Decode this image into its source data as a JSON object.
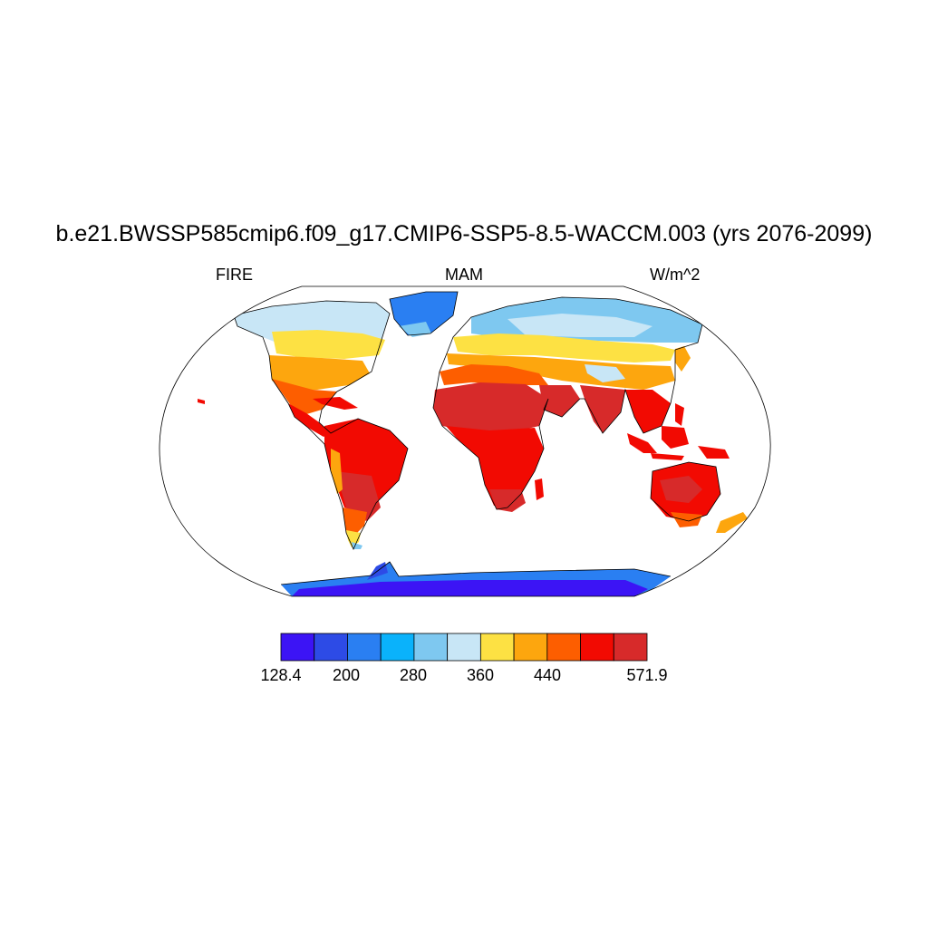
{
  "title": "b.e21.BWSSP585cmip6.f09_g17.CMIP6-SSP5-8.5-WACCM.003 (yrs 2076-2099)",
  "subtitle": {
    "left": "FIRE",
    "center": "MAM",
    "right": "W/m^2"
  },
  "colorbar": {
    "colors": [
      "#3c14f5",
      "#2d4be6",
      "#2a7ff2",
      "#0ab2fb",
      "#7ec8f0",
      "#c8e6f6",
      "#fde143",
      "#fda60e",
      "#fd5e00",
      "#f20a02",
      "#d72a2a"
    ],
    "labels": [
      "128.4",
      "200",
      "280",
      "360",
      "440",
      "571.9"
    ]
  },
  "colors": {
    "ocean": "#ffffff",
    "coast": "#000000",
    "frame": "#000000"
  }
}
